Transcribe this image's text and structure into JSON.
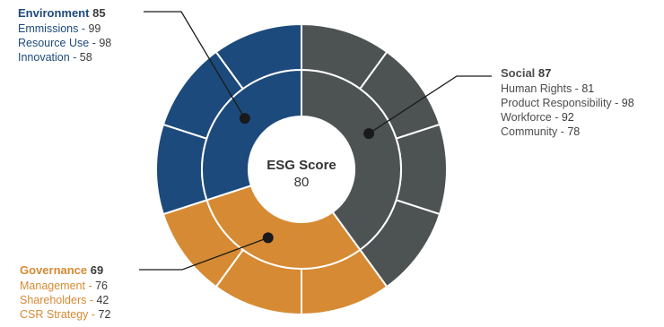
{
  "chart_data": {
    "type": "pie",
    "center": {
      "title": "ESG Score",
      "value": "80"
    },
    "colors": {
      "Environment": "#1d4a7c",
      "Social": "#4d5253",
      "Governance": "#d68a33"
    },
    "categories": [
      {
        "name": "Environment",
        "score": 85,
        "items": [
          {
            "label": "Emmissions",
            "value": 99
          },
          {
            "label": "Resource Use",
            "value": 98
          },
          {
            "label": "Innovation",
            "value": 58
          }
        ]
      },
      {
        "name": "Social",
        "score": 87,
        "items": [
          {
            "label": "Human Rights",
            "value": 81
          },
          {
            "label": "Product Responsibility",
            "value": 98
          },
          {
            "label": "Workforce",
            "value": 92
          },
          {
            "label": "Community ",
            "value": 78
          }
        ]
      },
      {
        "name": "Governance",
        "score": 69,
        "items": [
          {
            "label": "Management",
            "value": 76
          },
          {
            "label": "Shareholders",
            "value": 42
          },
          {
            "label": "CSR Strategy",
            "value": 72
          }
        ]
      }
    ]
  }
}
